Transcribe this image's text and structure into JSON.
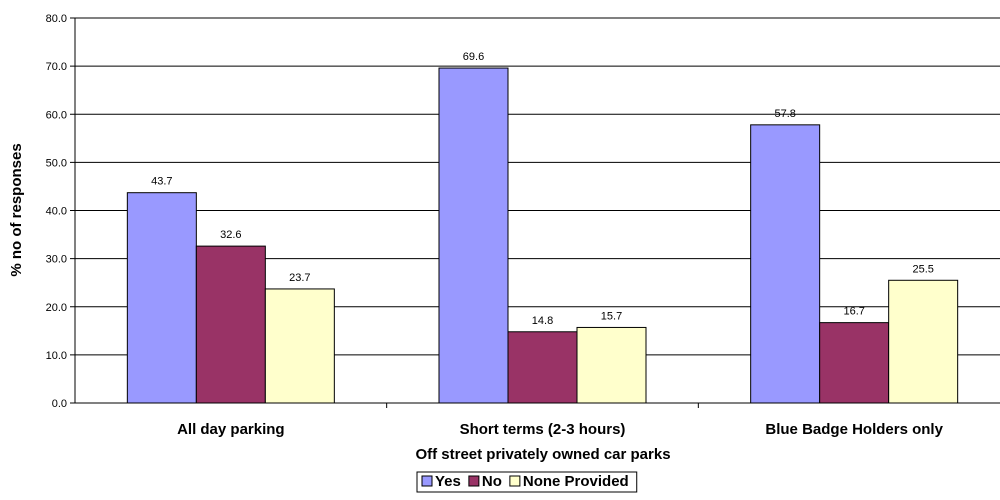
{
  "chart_data": {
    "type": "bar",
    "title": "",
    "xlabel": "Off street privately owned car parks",
    "ylabel": "% no of responses",
    "ylim": [
      0,
      80
    ],
    "yticks": [
      "0.0",
      "10.0",
      "20.0",
      "30.0",
      "40.0",
      "50.0",
      "60.0",
      "70.0",
      "80.0"
    ],
    "grid": true,
    "legend_position": "bottom",
    "categories": [
      "All day parking",
      "Short terms (2-3 hours)",
      "Blue Badge Holders only"
    ],
    "series": [
      {
        "name": "Yes",
        "color": "#9999ff",
        "values": [
          43.7,
          69.6,
          57.8
        ],
        "labels": [
          "43.7",
          "69.6",
          "57.8"
        ]
      },
      {
        "name": "No",
        "color": "#993366",
        "values": [
          32.6,
          14.8,
          16.7
        ],
        "labels": [
          "32.6",
          "14.8",
          "16.7"
        ]
      },
      {
        "name": "None Provided",
        "color": "#ffffcc",
        "values": [
          23.7,
          15.7,
          25.5
        ],
        "labels": [
          "23.7",
          "15.7",
          "25.5"
        ]
      }
    ]
  }
}
